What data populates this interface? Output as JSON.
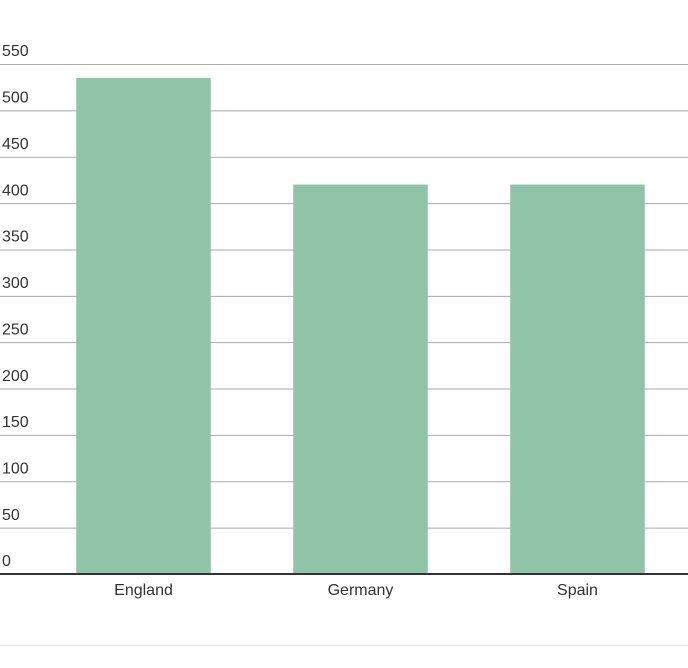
{
  "chart_data": {
    "type": "bar",
    "categories": [
      "England",
      "Germany",
      "Spain"
    ],
    "values": [
      535,
      420,
      420
    ],
    "color": "#8fc4a8",
    "ylim": [
      0,
      550
    ],
    "yticks": [
      0,
      50,
      100,
      150,
      200,
      250,
      300,
      350,
      400,
      450,
      500,
      550
    ],
    "grid": true
  }
}
